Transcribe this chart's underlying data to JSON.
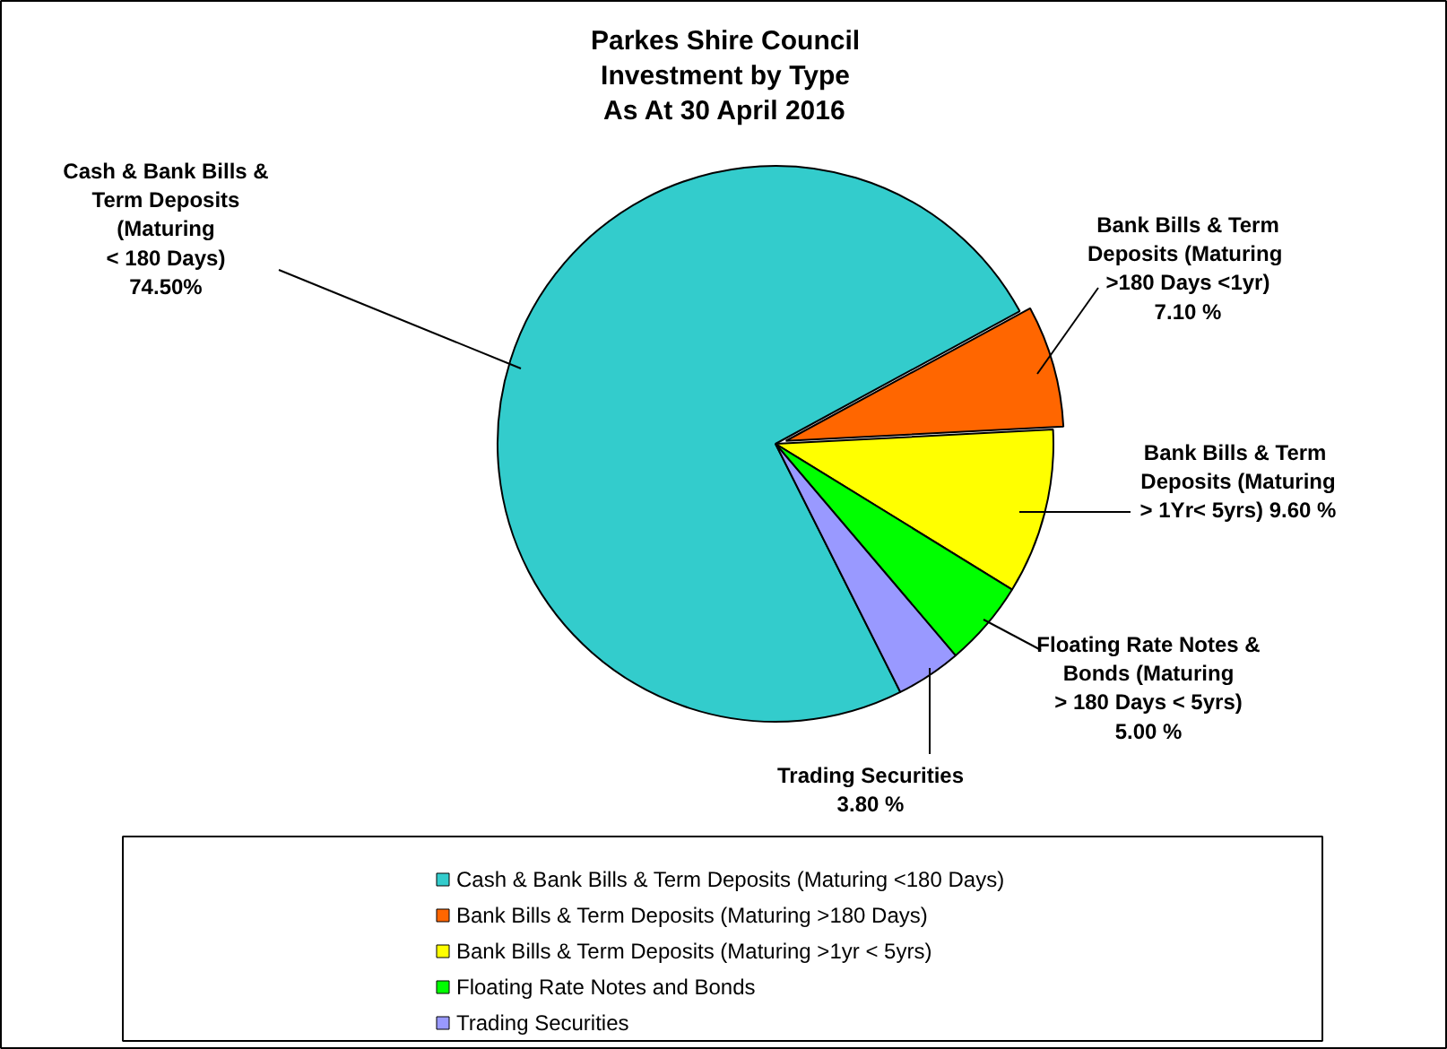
{
  "chart_data": {
    "type": "pie",
    "title": "Parkes Shire Council\nInvestment by Type\nAs At 30 April 2016",
    "categories": [
      "Cash & Bank Bills & Term Deposits (Maturing <180 Days)",
      "Bank Bills & Term Deposits (Maturing >180 Days)",
      "Bank Bills & Term Deposits (Maturing >1yr  < 5yrs)",
      "Floating Rate Notes and Bonds",
      "Trading Securities"
    ],
    "values": [
      74.5,
      7.1,
      9.6,
      5.0,
      3.8
    ],
    "colors": [
      "#33cccc",
      "#ff6600",
      "#ffff00",
      "#00ff00",
      "#9999ff"
    ],
    "value_labels": [
      "Cash & Bank Bills &\nTerm Deposits\n(Maturing\n< 180 Days)\n74.50%",
      "Bank Bills & Term\nDeposits  (Maturing\n>180 Days <1yr)\n7.10 %",
      "Bank  Bills & Term\nDeposits (Maturing\n> 1Yr< 5yrs) 9.60 %",
      "Floating Rate Notes &\nBonds (Maturing\n> 180 Days < 5yrs)\n5.00 %",
      "Trading Securities\n3.80 %"
    ],
    "legend": "bottom"
  }
}
